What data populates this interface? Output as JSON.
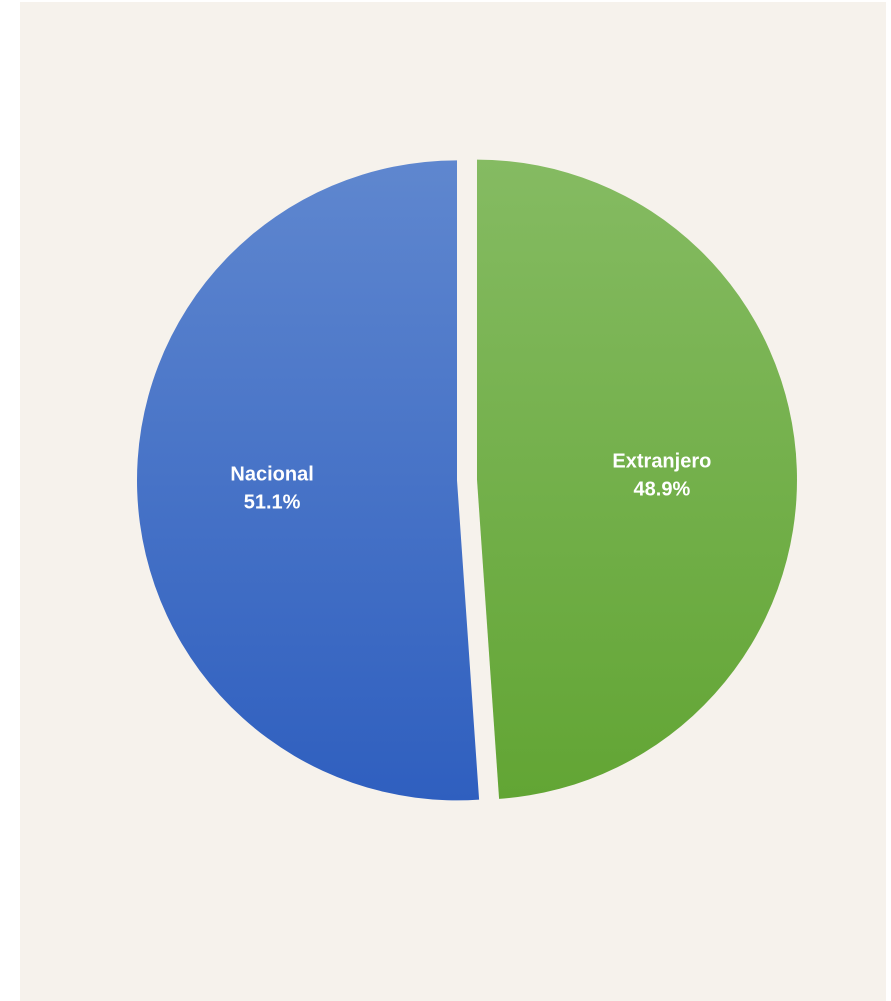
{
  "chart_data": {
    "type": "pie",
    "title": "",
    "slices": [
      {
        "label": "Nacional",
        "value": 51.1,
        "value_label": "51.1%",
        "color": "#4472c4",
        "color_light": "#5f87cf",
        "color_dark": "#2f5fbf"
      },
      {
        "label": "Extranjero",
        "value": 48.9,
        "value_label": "48.9%",
        "color": "#70ad47",
        "color_light": "#85bb62",
        "color_dark": "#62a534"
      }
    ],
    "start_angle_deg": 0,
    "exploded": true,
    "legend": "none"
  },
  "colors": {
    "background": "#f6f2ec"
  }
}
